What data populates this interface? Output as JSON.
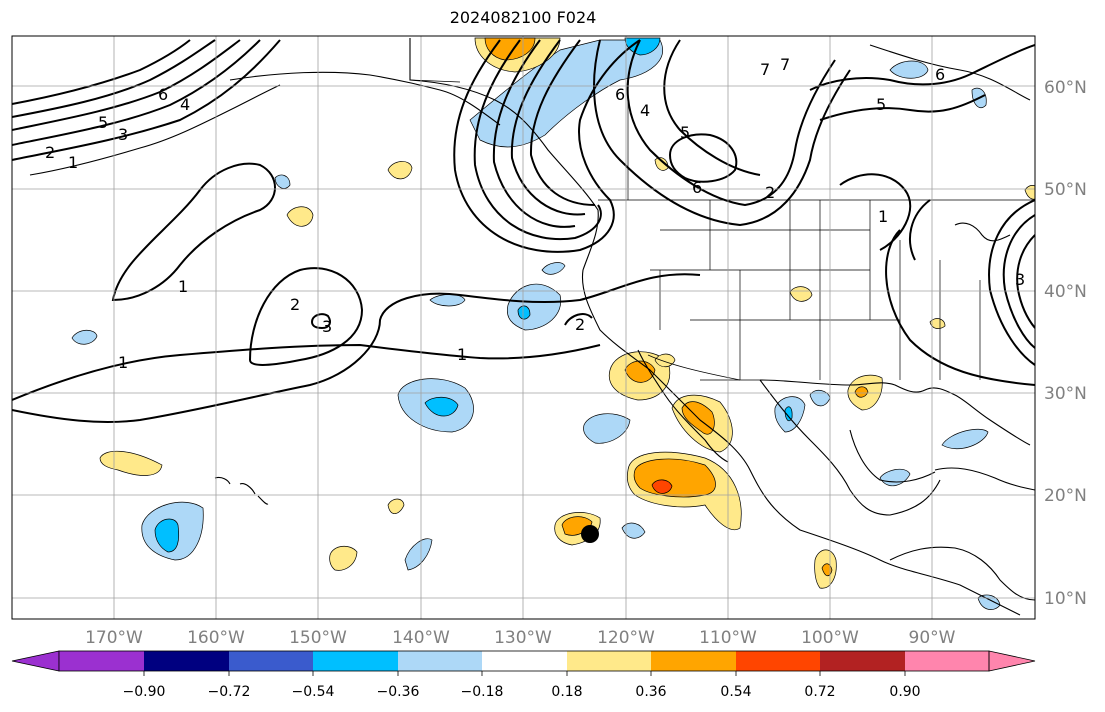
{
  "title": "2024082100 F024",
  "map": {
    "lon_ticks": [
      "170°W",
      "160°W",
      "150°W",
      "140°W",
      "130°W",
      "120°W",
      "110°W",
      "100°W",
      "90°W"
    ],
    "lat_ticks": [
      "60°N",
      "50°N",
      "40°N",
      "30°N",
      "20°N",
      "10°N"
    ],
    "contour_labels": [
      "6",
      "4",
      "5",
      "3",
      "2",
      "1",
      "1",
      "1",
      "2",
      "3",
      "1",
      "6",
      "4",
      "5",
      "6",
      "2",
      "7",
      "7",
      "6",
      "5",
      "1",
      "2",
      "3"
    ]
  },
  "colorbar": {
    "ticks": [
      "−0.90",
      "−0.72",
      "−0.54",
      "−0.36",
      "−0.18",
      "0.18",
      "0.36",
      "0.54",
      "0.72",
      "0.90"
    ],
    "colors": [
      "#9b30d0",
      "#000080",
      "#3a5bcd",
      "#00bfff",
      "#add8f7",
      "#ffffff",
      "#ffe98a",
      "#ffa500",
      "#ff4500",
      "#b22222",
      "#ff85ad"
    ]
  },
  "colors": {
    "grid": "#a0a0a0",
    "light_blue": "#add8f7",
    "mid_blue": "#00bfff",
    "yellow": "#ffe98a",
    "orange": "#ffa500",
    "red_orange": "#ff4500"
  }
}
